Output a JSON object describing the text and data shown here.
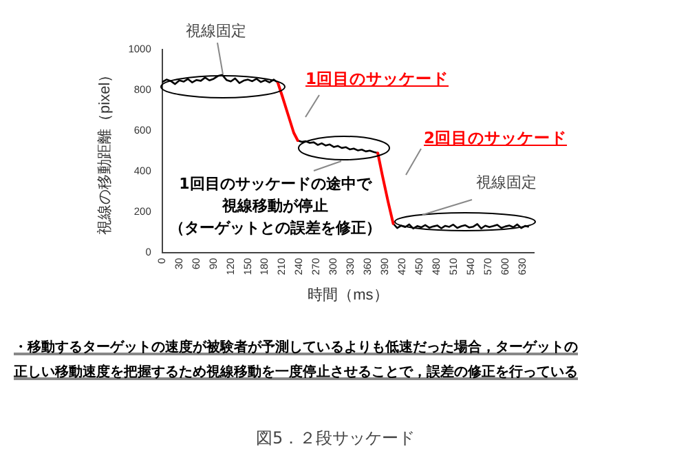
{
  "chart_data": {
    "type": "line",
    "xlabel": "時間（ms）",
    "ylabel": "視線の移動距離（pixel）",
    "xlim": [
      0,
      650
    ],
    "ylim": [
      0,
      1000
    ],
    "xticks": [
      0,
      30,
      60,
      90,
      120,
      150,
      180,
      210,
      240,
      270,
      300,
      330,
      360,
      390,
      420,
      450,
      480,
      510,
      540,
      570,
      600,
      630
    ],
    "yticks": [
      0,
      200,
      400,
      600,
      800,
      1000
    ],
    "grid": false,
    "legend": false,
    "marker": "none",
    "line_style": "solid",
    "series": [
      {
        "color": "#000000",
        "x": [
          0,
          7.5,
          15,
          22.5,
          30,
          37.5,
          45,
          52.5,
          60,
          67.5,
          75,
          82.5,
          90,
          97.5,
          105,
          112.5,
          120,
          127.5,
          135,
          142.5,
          150,
          157.5,
          165,
          172.5,
          180,
          187.5,
          195,
          202,
          210,
          220,
          230,
          237,
          244,
          251,
          258,
          265,
          272,
          279,
          286,
          293,
          300,
          307,
          314,
          321,
          328,
          335,
          342,
          349,
          356,
          363,
          370,
          377,
          385,
          395,
          404,
          411,
          418,
          425,
          432,
          439,
          446,
          453,
          460,
          467,
          474,
          481,
          488,
          495,
          502,
          509,
          516,
          523,
          530,
          537,
          544,
          551,
          558,
          565,
          572,
          579,
          586,
          593,
          600,
          607,
          614,
          621,
          628,
          635,
          640
        ],
        "values": [
          840,
          852,
          845,
          830,
          848,
          842,
          855,
          838,
          850,
          846,
          862,
          848,
          856,
          870,
          875,
          850,
          843,
          858,
          835,
          847,
          852,
          844,
          856,
          840,
          849,
          838,
          852,
          838,
          null,
          null,
          null,
          552,
          545,
          548,
          540,
          543,
          530,
          538,
          527,
          532,
          520,
          525,
          515,
          519,
          508,
          512,
          503,
          507,
          498,
          502,
          495,
          490,
          null,
          null,
          142,
          120,
          132,
          125,
          138,
          118,
          130,
          124,
          135,
          122,
          128,
          133,
          119,
          131,
          126,
          137,
          121,
          129,
          134,
          123,
          127,
          140,
          118,
          132,
          125,
          130,
          136,
          121,
          128,
          133,
          124,
          138,
          120,
          131,
          127
        ]
      },
      {
        "color": "#ff0000",
        "x": [
          202,
          210,
          220,
          230,
          237
        ],
        "values": [
          838,
          770,
          680,
          590,
          552
        ]
      },
      {
        "color": "#ff0000",
        "x": [
          377,
          385,
          395,
          404
        ],
        "values": [
          490,
          380,
          250,
          142
        ]
      }
    ],
    "annotations": [
      "視線固定",
      "1回目のサッケード",
      "2回目のサッケード",
      "1回目のサッケードの途中で",
      "視線移動が停止",
      "（ターゲットとの誤差を修正）",
      "視線固定",
      "・移動するターゲットの速度が被験者が予測しているよりも低速だった場合，ターゲットの",
      "正しい移動速度を把握するため視線移動を一度停止させることで，誤差の修正を行っている",
      "図5．２段サッケード"
    ]
  }
}
